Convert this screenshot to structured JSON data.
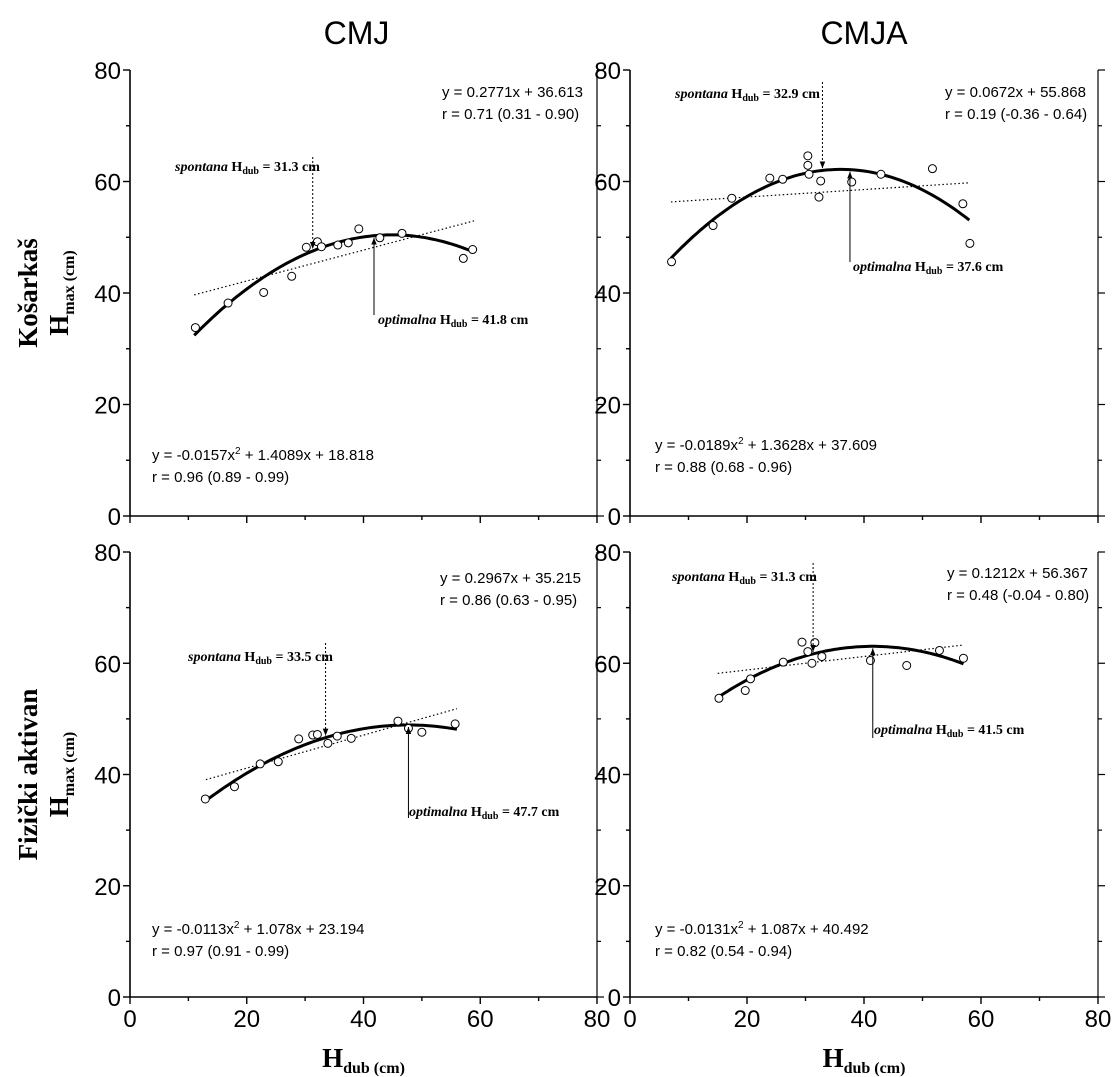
{
  "chart_data": [
    {
      "type": "scatter",
      "column_title": "CMJ",
      "row_label": "Košarkaš",
      "ylabel_main": "H",
      "ylabel_sub": "max (cm)",
      "xlabel_main": "H",
      "xlabel_sub": "dub (cm)",
      "xlim": [
        0,
        80
      ],
      "ylim": [
        0,
        80
      ],
      "xticks": [
        "0",
        "20",
        "40",
        "60",
        "80"
      ],
      "yticks": [
        "0",
        "20",
        "40",
        "60",
        "80"
      ],
      "points": [
        [
          11.2,
          33.8
        ],
        [
          16.8,
          38.2
        ],
        [
          22.9,
          40.1
        ],
        [
          27.7,
          43.0
        ],
        [
          30.2,
          48.2
        ],
        [
          32.1,
          49.2
        ],
        [
          32.8,
          48.3
        ],
        [
          35.6,
          48.6
        ],
        [
          37.4,
          49.0
        ],
        [
          39.2,
          51.5
        ],
        [
          42.8,
          49.9
        ],
        [
          46.6,
          50.7
        ],
        [
          57.1,
          46.2
        ],
        [
          58.7,
          47.8
        ]
      ],
      "linear_fit": {
        "slope": 0.2771,
        "intercept": 36.613,
        "x_range": [
          11,
          59
        ]
      },
      "quadratic_fit": {
        "a": -0.0157,
        "b": 1.4089,
        "c": 18.818,
        "x_range": [
          11,
          59
        ]
      },
      "linear_eq": "y = 0.2771x + 36.613",
      "linear_r": "r = 0.71 (0.31 - 0.90)",
      "quad_eq_a": "y = -0.0157x",
      "quad_eq_b": " + 1.4089x + 18.818",
      "quad_r": "r = 0.96 (0.89 - 0.99)",
      "spontana_label": "spontana",
      "spontana_value": " = 31.3 cm",
      "spontana_x": 31.3,
      "optimalna_label": "optimalna",
      "optimalna_value": " = 41.8 cm",
      "optimalna_x": 41.8
    },
    {
      "type": "scatter",
      "column_title": "CMJA",
      "row_label": "Košarkaš",
      "ylabel_main": "H",
      "ylabel_sub": "max (cm)",
      "xlabel_main": "H",
      "xlabel_sub": "dub (cm)",
      "xlim": [
        0,
        80
      ],
      "ylim": [
        0,
        80
      ],
      "xticks": [
        "0",
        "20",
        "40",
        "60",
        "80"
      ],
      "yticks": [
        "0",
        "20",
        "40",
        "60",
        "80"
      ],
      "points": [
        [
          7.1,
          45.6
        ],
        [
          14.2,
          52.1
        ],
        [
          17.4,
          57.0
        ],
        [
          23.9,
          60.6
        ],
        [
          26.1,
          60.4
        ],
        [
          30.4,
          64.6
        ],
        [
          30.4,
          62.9
        ],
        [
          30.6,
          61.3
        ],
        [
          32.3,
          57.2
        ],
        [
          32.6,
          60.1
        ],
        [
          37.9,
          59.9
        ],
        [
          42.9,
          61.3
        ],
        [
          51.7,
          62.3
        ],
        [
          56.9,
          56.0
        ],
        [
          58.1,
          48.9
        ]
      ],
      "linear_fit": {
        "slope": 0.0672,
        "intercept": 55.868,
        "x_range": [
          7,
          58
        ]
      },
      "quadratic_fit": {
        "a": -0.0189,
        "b": 1.3628,
        "c": 37.609,
        "x_range": [
          7,
          58
        ]
      },
      "linear_eq": "y = 0.0672x + 55.868",
      "linear_r": "r = 0.19 (-0.36 - 0.64)",
      "quad_eq_a": "y = -0.0189x",
      "quad_eq_b": " + 1.3628x + 37.609",
      "quad_r": "r = 0.88 (0.68 - 0.96)",
      "spontana_label": "spontana",
      "spontana_value": " = 32.9 cm",
      "spontana_x": 32.9,
      "optimalna_label": "optimalna",
      "optimalna_value": " = 37.6 cm",
      "optimalna_x": 37.6
    },
    {
      "type": "scatter",
      "column_title": "CMJ",
      "row_label": "Fizički aktivan",
      "ylabel_main": "H",
      "ylabel_sub": "max (cm)",
      "xlabel_main": "H",
      "xlabel_sub": "dub (cm)",
      "xlim": [
        0,
        80
      ],
      "ylim": [
        0,
        80
      ],
      "xticks": [
        "0",
        "20",
        "40",
        "60",
        "80"
      ],
      "yticks": [
        "0",
        "20",
        "40",
        "60",
        "80"
      ],
      "points": [
        [
          12.9,
          35.6
        ],
        [
          17.9,
          37.8
        ],
        [
          22.3,
          41.9
        ],
        [
          25.4,
          42.3
        ],
        [
          28.9,
          46.4
        ],
        [
          31.3,
          47.1
        ],
        [
          32.1,
          47.2
        ],
        [
          33.9,
          45.6
        ],
        [
          35.5,
          46.9
        ],
        [
          37.9,
          46.5
        ],
        [
          45.9,
          49.6
        ],
        [
          47.7,
          48.3
        ],
        [
          50.0,
          47.6
        ],
        [
          55.7,
          49.1
        ]
      ],
      "linear_fit": {
        "slope": 0.2967,
        "intercept": 35.215,
        "x_range": [
          13,
          56
        ]
      },
      "quadratic_fit": {
        "a": -0.0113,
        "b": 1.078,
        "c": 23.194,
        "x_range": [
          13,
          56
        ]
      },
      "linear_eq": "y = 0.2967x + 35.215",
      "linear_r": "r = 0.86 (0.63 - 0.95)",
      "quad_eq_a": "y = -0.0113x",
      "quad_eq_b": " + 1.078x + 23.194",
      "quad_r": "r = 0.97 (0.91 - 0.99)",
      "spontana_label": "spontana",
      "spontana_value": " = 33.5 cm",
      "spontana_x": 33.5,
      "optimalna_label": "optimalna",
      "optimalna_value": " = 47.7 cm",
      "optimalna_x": 47.7
    },
    {
      "type": "scatter",
      "column_title": "CMJA",
      "row_label": "Fizički aktivan",
      "ylabel_main": "H",
      "ylabel_sub": "max (cm)",
      "xlabel_main": "H",
      "xlabel_sub": "dub (cm)",
      "xlim": [
        0,
        80
      ],
      "ylim": [
        0,
        80
      ],
      "xticks": [
        "0",
        "20",
        "40",
        "60",
        "80"
      ],
      "yticks": [
        "0",
        "20",
        "40",
        "60",
        "80"
      ],
      "points": [
        [
          15.2,
          53.7
        ],
        [
          19.7,
          55.1
        ],
        [
          20.6,
          57.2
        ],
        [
          26.2,
          60.2
        ],
        [
          29.4,
          63.8
        ],
        [
          30.4,
          62.1
        ],
        [
          31.1,
          60.0
        ],
        [
          31.6,
          63.7
        ],
        [
          32.8,
          61.2
        ],
        [
          41.1,
          60.5
        ],
        [
          47.3,
          59.6
        ],
        [
          52.9,
          62.3
        ],
        [
          57.0,
          60.9
        ]
      ],
      "linear_fit": {
        "slope": 0.1212,
        "intercept": 56.367,
        "x_range": [
          15,
          57
        ]
      },
      "quadratic_fit": {
        "a": -0.0131,
        "b": 1.087,
        "c": 40.492,
        "x_range": [
          15,
          57
        ]
      },
      "linear_eq": "y = 0.1212x + 56.367",
      "linear_r": "r = 0.48 (-0.04 - 0.80)",
      "quad_eq_a": "y = -0.0131x",
      "quad_eq_b": " + 1.087x + 40.492",
      "quad_r": "r = 0.82 (0.54 - 0.94)",
      "spontana_label": "spontana",
      "spontana_value": " = 31.3 cm",
      "spontana_x": 31.3,
      "optimalna_label": "optimalna",
      "optimalna_value": " = 41.5 cm",
      "optimalna_x": 41.5
    }
  ]
}
